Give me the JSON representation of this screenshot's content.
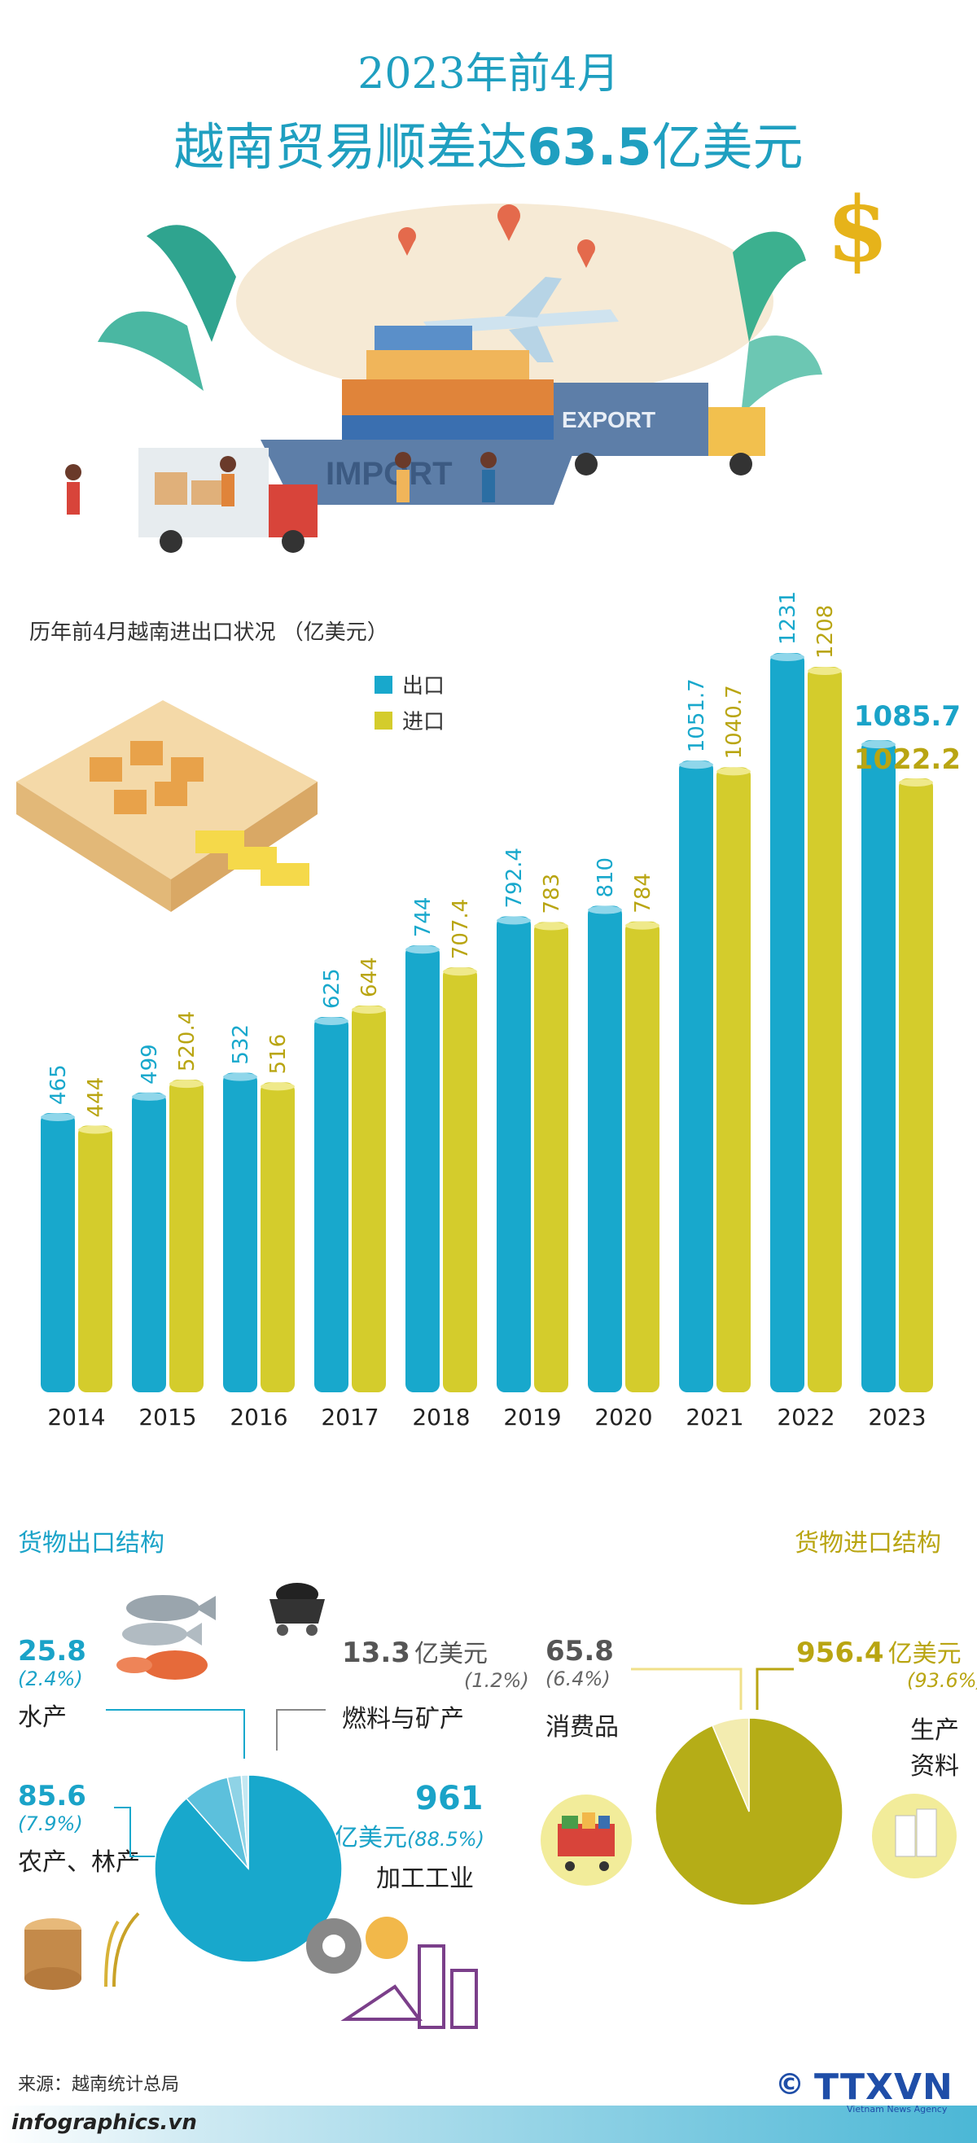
{
  "header": {
    "line1": "2023年前4月",
    "line2_prefix": "越南贸易顺差达",
    "line2_number": "63.5",
    "line2_suffix": "亿美元"
  },
  "hero": {
    "import_label": "IMPORT",
    "export_label": "EXPORT"
  },
  "chart_caption": "历年前4月越南进出口状况  （亿美元）",
  "colors": {
    "export": "#18a8cc",
    "import": "#d4cc2c",
    "title": "#1f9fc0",
    "gold_text": "#b9a512"
  },
  "chart_data": {
    "type": "bar",
    "categories": [
      "2014",
      "2015",
      "2016",
      "2017",
      "2018",
      "2019",
      "2020",
      "2021",
      "2022",
      "2023"
    ],
    "series": [
      {
        "name": "出口",
        "values": [
          465,
          499,
          532,
          625,
          744,
          792.4,
          810,
          1051.7,
          1231,
          1085.7
        ]
      },
      {
        "name": "进口",
        "values": [
          444,
          520.4,
          516,
          644,
          707.4,
          783,
          784,
          1040.7,
          1208,
          1022.2
        ]
      }
    ],
    "value_labels_export": [
      "465",
      "499",
      "532",
      "625",
      "744",
      "792.4",
      "810",
      "1051.7",
      "1231",
      "1085.7"
    ],
    "value_labels_import": [
      "444",
      "520.4",
      "516",
      "644",
      "707.4",
      "783",
      "784",
      "1040.7",
      "1208",
      "1022.2"
    ],
    "legend": [
      "出口",
      "进口"
    ],
    "legend_position": "top-left"
  },
  "export_structure": {
    "title": "货物出口结构",
    "items": [
      {
        "value": "25.8",
        "pct": "(2.4%)",
        "label": "水产"
      },
      {
        "value": "13.3",
        "unit": "亿美元",
        "pct": "(1.2%)",
        "label": "燃料与矿产"
      },
      {
        "value": "85.6",
        "pct": "(7.9%)",
        "label": "农产、林产"
      },
      {
        "value": "961",
        "unit": "亿美元",
        "pct": "(88.5%)",
        "label": "加工工业"
      }
    ],
    "pie_values": [
      88.5,
      7.9,
      2.4,
      1.2
    ]
  },
  "import_structure": {
    "title": "货物进口结构",
    "items": [
      {
        "value": "65.8",
        "pct": "(6.4%)",
        "label": "消费品"
      },
      {
        "value": "956.4",
        "unit": "亿美元",
        "pct": "(93.6%)",
        "label_line1": "生产",
        "label_line2": "资料"
      }
    ],
    "pie_values": [
      93.6,
      6.4
    ]
  },
  "footer": {
    "source": "来源：越南统计总局",
    "site": "infographics.vn",
    "copyright": "©",
    "brand": "TTXVN",
    "brand_sub": "Vietnam News Agency"
  }
}
